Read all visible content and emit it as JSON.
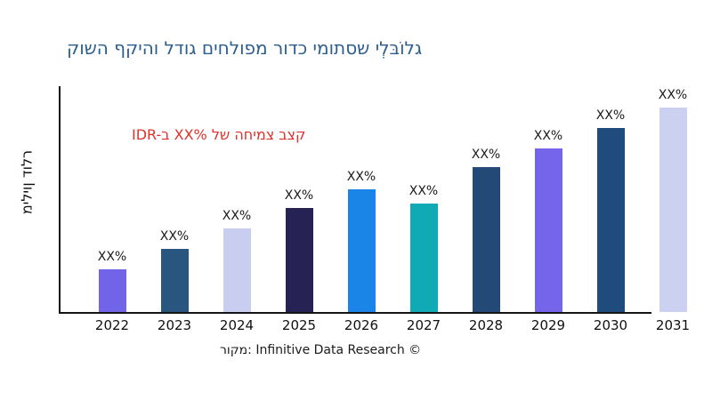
{
  "chart_data": {
    "type": "bar",
    "title": "קושה ףקיהו לדוג םיחלופמ רודכ ימותסש ילְבּוֹלג",
    "title_color": "#2D5E8E",
    "annotation": {
      "text": "IDR-ב XX% לש החימצ בצק",
      "color": "#E0312B"
    },
    "ylabel": "מיליון דולר",
    "xlabel": "",
    "source_caption": "רוקמ: Infinitive Data Research ©",
    "categories": [
      "2022",
      "2023",
      "2024",
      "2025",
      "2026",
      "2027",
      "2028",
      "2029",
      "2030",
      "2031"
    ],
    "bar_value_labels": [
      "XX%",
      "XX%",
      "XX%",
      "XX%",
      "XX%",
      "XX%",
      "XX%",
      "XX%",
      "XX%",
      "XX%"
    ],
    "bar_heights_pct_of_max": [
      21,
      31,
      41,
      51,
      60,
      53,
      71,
      80,
      90,
      100
    ],
    "bar_colors": [
      "#7164E8",
      "#29567E",
      "#C9CDEF",
      "#262254",
      "#1B84E7",
      "#10A9B6",
      "#234976",
      "#7465EA",
      "#1F4B7D",
      "#CDD1F1"
    ],
    "axis_color": "#141414",
    "y_tick_labels": [],
    "grid": false,
    "legend": false
  }
}
